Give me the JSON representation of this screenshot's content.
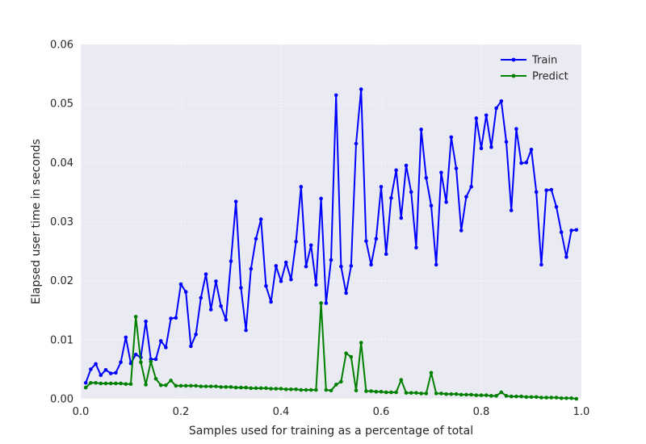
{
  "chart_data": {
    "type": "line",
    "title": "",
    "xlabel": "Samples used for training as a percentage of total",
    "ylabel": "Elapsed user time in seconds",
    "xlim": [
      0.0,
      1.0
    ],
    "ylim": [
      0.0,
      0.06
    ],
    "xticks": [
      "0.0",
      "0.2",
      "0.4",
      "0.6",
      "0.8",
      "1.0"
    ],
    "yticks": [
      "0.00",
      "0.01",
      "0.02",
      "0.03",
      "0.04",
      "0.05",
      "0.06"
    ],
    "grid": true,
    "legend_position": "top-right",
    "x": [
      0.01,
      0.02,
      0.03,
      0.04,
      0.05,
      0.06,
      0.07,
      0.08,
      0.09,
      0.1,
      0.11,
      0.12,
      0.13,
      0.14,
      0.15,
      0.16,
      0.17,
      0.18,
      0.19,
      0.2,
      0.21,
      0.22,
      0.23,
      0.24,
      0.25,
      0.26,
      0.27,
      0.28,
      0.29,
      0.3,
      0.31,
      0.32,
      0.33,
      0.34,
      0.35,
      0.36,
      0.37,
      0.38,
      0.39,
      0.4,
      0.41,
      0.42,
      0.43,
      0.44,
      0.45,
      0.46,
      0.47,
      0.48,
      0.49,
      0.5,
      0.51,
      0.52,
      0.53,
      0.54,
      0.55,
      0.56,
      0.57,
      0.58,
      0.59,
      0.6,
      0.61,
      0.62,
      0.63,
      0.64,
      0.65,
      0.66,
      0.67,
      0.68,
      0.69,
      0.7,
      0.71,
      0.72,
      0.73,
      0.74,
      0.75,
      0.76,
      0.77,
      0.78,
      0.79,
      0.8,
      0.81,
      0.82,
      0.83,
      0.84,
      0.85,
      0.86,
      0.87,
      0.88,
      0.89,
      0.9,
      0.91,
      0.92,
      0.93,
      0.94,
      0.95,
      0.96,
      0.97,
      0.98,
      0.99
    ],
    "series": [
      {
        "name": "Train",
        "color": "#0000ff",
        "values": [
          0.0027,
          0.005,
          0.0059,
          0.004,
          0.0049,
          0.0043,
          0.0044,
          0.0062,
          0.0104,
          0.006,
          0.0075,
          0.007,
          0.0131,
          0.0067,
          0.0067,
          0.0098,
          0.0087,
          0.0136,
          0.0137,
          0.0194,
          0.0181,
          0.0089,
          0.0109,
          0.0171,
          0.0211,
          0.0151,
          0.0199,
          0.0157,
          0.0134,
          0.0233,
          0.0334,
          0.0188,
          0.0116,
          0.022,
          0.0271,
          0.0304,
          0.0191,
          0.0164,
          0.0225,
          0.0199,
          0.0231,
          0.0202,
          0.0266,
          0.0359,
          0.0224,
          0.026,
          0.0193,
          0.0339,
          0.0162,
          0.0235,
          0.0514,
          0.0224,
          0.0179,
          0.0225,
          0.0432,
          0.0524,
          0.0267,
          0.0227,
          0.0271,
          0.0359,
          0.0245,
          0.034,
          0.0387,
          0.0306,
          0.0395,
          0.035,
          0.0256,
          0.0456,
          0.0374,
          0.0327,
          0.0227,
          0.0383,
          0.0333,
          0.0443,
          0.039,
          0.0285,
          0.0342,
          0.0359,
          0.0475,
          0.0424,
          0.048,
          0.0426,
          0.0492,
          0.0504,
          0.0435,
          0.0319,
          0.0457,
          0.0399,
          0.04,
          0.0422,
          0.035,
          0.0227,
          0.0353,
          0.0354,
          0.0325,
          0.0282,
          0.024,
          0.0285,
          0.0286
        ]
      },
      {
        "name": "Predict",
        "color": "#008000",
        "values": [
          0.0019,
          0.0027,
          0.0027,
          0.0026,
          0.0026,
          0.0026,
          0.0026,
          0.0026,
          0.0025,
          0.0025,
          0.0139,
          0.0062,
          0.0024,
          0.0063,
          0.0034,
          0.0023,
          0.0023,
          0.0031,
          0.0022,
          0.0022,
          0.0022,
          0.0022,
          0.0022,
          0.0021,
          0.0021,
          0.0021,
          0.0021,
          0.002,
          0.002,
          0.002,
          0.0019,
          0.0019,
          0.0019,
          0.0018,
          0.0018,
          0.0018,
          0.0018,
          0.0017,
          0.0017,
          0.0017,
          0.0016,
          0.0016,
          0.0016,
          0.0015,
          0.0015,
          0.0015,
          0.0015,
          0.0162,
          0.0015,
          0.0014,
          0.0024,
          0.0029,
          0.0077,
          0.0071,
          0.0014,
          0.0095,
          0.0013,
          0.0013,
          0.0012,
          0.0012,
          0.0011,
          0.0011,
          0.0011,
          0.0032,
          0.001,
          0.001,
          0.001,
          0.0009,
          0.0009,
          0.0044,
          0.0009,
          0.0009,
          0.0008,
          0.0008,
          0.0008,
          0.0007,
          0.0007,
          0.0007,
          0.0006,
          0.0006,
          0.0006,
          0.0005,
          0.0005,
          0.0011,
          0.0005,
          0.0004,
          0.0004,
          0.0004,
          0.0003,
          0.0003,
          0.0003,
          0.0002,
          0.0002,
          0.0002,
          0.0002,
          0.0001,
          0.0001,
          0.0001,
          0.0
        ]
      }
    ]
  }
}
